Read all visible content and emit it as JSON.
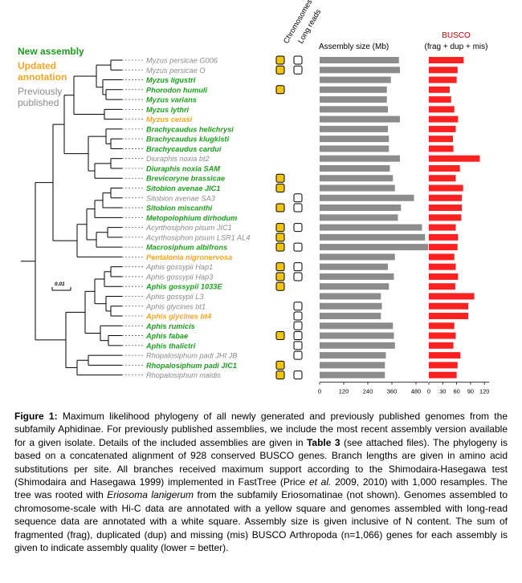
{
  "legend": {
    "new": "New assembly",
    "updated_line1": "Updated",
    "updated_line2": "annotation",
    "previous_line1": "Previously",
    "previous_line2": "published"
  },
  "colors": {
    "new": "#1f9e1f",
    "updated": "#f5a623",
    "previous": "#8c8c8c",
    "assembly_bar": "#8c8c8c",
    "busco_bar": "#ff2020",
    "chromosome_square": "#f1c40f"
  },
  "scale_bar_label": "0.01",
  "column_headers": {
    "chromosomes": "Chromosomes",
    "long_reads": "Long reads",
    "assembly": "Assembly size (Mb)",
    "busco_title": "BUSCO",
    "busco_sub": "(frag + dup + mis)"
  },
  "chart_data": [
    {
      "type": "bar",
      "title": "Assembly size (Mb)",
      "xlim": [
        0,
        540
      ],
      "ticks": [
        "0",
        "120",
        "240",
        "360",
        "480"
      ],
      "categories": [
        "Myzus persicae G006",
        "Myzus persicae O",
        "Myzus ligustri",
        "Phorodon humuli",
        "Myzus varians",
        "Myzus lythri",
        "Myzus cerasi",
        "Brachycaudus helichrysi",
        "Brachycaudus klugkisti",
        "Brachycaudus cardui",
        "Diuraphis noxia bt2",
        "Diuraphis noxia SAM",
        "Brevicoryne brassicae",
        "Sitobion avenae JIC1",
        "Sitobion avenae SA3",
        "Sitobion miscanthi",
        "Metopolophium dirhodum",
        "Acyrthosiphon pisum JIC1",
        "Acyrthosiphon pisum LSR1 AL4",
        "Macrosiphum albifrons",
        "Pentalonia nigronervosa",
        "Aphis gossypii Hap1",
        "Aphis gossypii Hap3",
        "Aphis gossypii 1033E",
        "Aphis gossypii L3",
        "Aphis glycines bt1",
        "Aphis glycines bt4",
        "Aphis rumicis",
        "Aphis fabae",
        "Aphis thalictri",
        "Rhopalosiphum padi JHI JB",
        "Rhopalosiphum padi JIC1",
        "Rhopalosiphum maidis"
      ],
      "values": [
        395,
        400,
        355,
        335,
        335,
        340,
        400,
        340,
        345,
        345,
        400,
        350,
        365,
        375,
        470,
        405,
        390,
        510,
        525,
        540,
        375,
        340,
        370,
        345,
        305,
        310,
        305,
        365,
        370,
        375,
        330,
        325,
        325
      ]
    },
    {
      "type": "bar",
      "title": "BUSCO (frag + dup + mis)",
      "xlim": [
        0,
        130
      ],
      "ticks": [
        "0",
        "30",
        "60",
        "90",
        "120"
      ],
      "categories": [
        "Myzus persicae G006",
        "Myzus persicae O",
        "Myzus ligustri",
        "Phorodon humuli",
        "Myzus varians",
        "Myzus lythri",
        "Myzus cerasi",
        "Brachycaudus helichrysi",
        "Brachycaudus klugkisti",
        "Brachycaudus cardui",
        "Diuraphis noxia bt2",
        "Diuraphis noxia SAM",
        "Brevicoryne brassicae",
        "Sitobion avenae JIC1",
        "Sitobion avenae SA3",
        "Sitobion miscanthi",
        "Metopolophium dirhodum",
        "Acyrthosiphon pisum JIC1",
        "Acyrthosiphon pisum LSR1 AL4",
        "Macrosiphum albifrons",
        "Pentalonia nigronervosa",
        "Aphis gossypii Hap1",
        "Aphis gossypii Hap3",
        "Aphis gossypii 1033E",
        "Aphis gossypii L3",
        "Aphis glycines bt1",
        "Aphis glycines bt4",
        "Aphis rumicis",
        "Aphis fabae",
        "Aphis thalictri",
        "Rhopalosiphum padi JHI JB",
        "Rhopalosiphum padi JIC1",
        "Rhopalosiphum maidis"
      ],
      "values": [
        75,
        62,
        60,
        45,
        48,
        55,
        63,
        58,
        52,
        53,
        110,
        67,
        58,
        74,
        71,
        71,
        70,
        58,
        63,
        62,
        55,
        58,
        63,
        57,
        98,
        85,
        85,
        55,
        58,
        53,
        68,
        62,
        60
      ]
    }
  ],
  "taxa": [
    {
      "name": "Myzus persicae G006",
      "status": "previous",
      "chrom": true,
      "long": true
    },
    {
      "name": "Myzus persicae O",
      "status": "previous",
      "chrom": true,
      "long": true
    },
    {
      "name": "Myzus ligustri",
      "status": "new",
      "chrom": false,
      "long": false
    },
    {
      "name": "Phorodon humuli",
      "status": "new",
      "chrom": true,
      "long": false
    },
    {
      "name": "Myzus varians",
      "status": "new",
      "chrom": false,
      "long": false
    },
    {
      "name": "Myzus lythri",
      "status": "new",
      "chrom": false,
      "long": false
    },
    {
      "name": "Myzus cerasi",
      "status": "updated",
      "chrom": false,
      "long": false
    },
    {
      "name": "Brachycaudus helichrysi",
      "status": "new",
      "chrom": false,
      "long": false
    },
    {
      "name": "Brachycaudus klugkisti",
      "status": "new",
      "chrom": false,
      "long": false
    },
    {
      "name": "Brachycaudus cardui",
      "status": "new",
      "chrom": false,
      "long": false
    },
    {
      "name": "Diuraphis noxia bt2",
      "status": "previous",
      "chrom": false,
      "long": false
    },
    {
      "name": "Diuraphis noxia SAM",
      "status": "new",
      "chrom": false,
      "long": false
    },
    {
      "name": "Brevicoryne brassicae",
      "status": "new",
      "chrom": true,
      "long": false
    },
    {
      "name": "Sitobion avenae JIC1",
      "status": "new",
      "chrom": true,
      "long": false
    },
    {
      "name": "Sitobion avenae SA3",
      "status": "previous",
      "chrom": false,
      "long": true
    },
    {
      "name": "Sitobion miscanthi",
      "status": "new",
      "chrom": true,
      "long": true
    },
    {
      "name": "Metopolophium dirhodum",
      "status": "new",
      "chrom": false,
      "long": false
    },
    {
      "name": "Acyrthosiphon pisum JIC1",
      "status": "previous",
      "chrom": true,
      "long": true
    },
    {
      "name": "Acyrthosiphon pisum LSR1 AL4",
      "status": "previous",
      "chrom": true,
      "long": false
    },
    {
      "name": "Macrosiphum albifrons",
      "status": "new",
      "chrom": true,
      "long": true
    },
    {
      "name": "Pentalonia nigronervosa",
      "status": "updated",
      "chrom": false,
      "long": false
    },
    {
      "name": "Aphis gossypii Hap1",
      "status": "previous",
      "chrom": true,
      "long": true
    },
    {
      "name": "Aphis gossypii Hap3",
      "status": "previous",
      "chrom": true,
      "long": true
    },
    {
      "name": "Aphis gossypii 1033E",
      "status": "new",
      "chrom": true,
      "long": false
    },
    {
      "name": "Aphis gossypii L3",
      "status": "previous",
      "chrom": false,
      "long": false
    },
    {
      "name": "Aphis glycines bt1",
      "status": "previous",
      "chrom": false,
      "long": true
    },
    {
      "name": "Aphis glycines bt4",
      "status": "updated",
      "chrom": false,
      "long": true
    },
    {
      "name": "Aphis rumicis",
      "status": "new",
      "chrom": false,
      "long": true
    },
    {
      "name": "Aphis fabae",
      "status": "new",
      "chrom": true,
      "long": true
    },
    {
      "name": "Aphis thalictri",
      "status": "new",
      "chrom": false,
      "long": true
    },
    {
      "name": "Rhopalosiphum padi JHI JB",
      "status": "previous",
      "chrom": false,
      "long": true
    },
    {
      "name": "Rhopalosiphum padi JIC1",
      "status": "new",
      "chrom": true,
      "long": false
    },
    {
      "name": "Rhopalosiphum maidis",
      "status": "previous",
      "chrom": true,
      "long": true
    }
  ],
  "caption": {
    "label": "Figure 1:",
    "p1": "Maximum likelihood phylogeny of all newly generated and previously published genomes from the subfamily Aphidinae. For previously published assemblies, we include the most recent assembly version available for a given isolate. Details of the included assemblies are given in",
    "table_ref": "Table 3",
    "p2": "(see attached files). The phylogeny is based on a concatenated alignment of 928 conserved BUSCO genes. Branch lengths are given in amino acid substitutions per site. All branches received maximum support according to the Shimodaira-Hasegawa test (Shimodaira and Hasegawa 1999) implemented in FastTree (Price",
    "etal": "et al.",
    "p3": "2009, 2010) with 1,000 resamples. The tree was rooted with",
    "rootsp": "Eriosoma lanigerum",
    "p4": "from the subfamily Eriosomatinae (not shown). Genomes assembled to chromosome-scale with Hi-C data are annotated with a yellow square and genomes assembled with long-read sequence data are annotated with a white square. Assembly size is given inclusive of N content. The sum of fragmented (frag), duplicated (dup) and missing (mis) BUSCO Arthropoda (n=1,066) genes for each assembly is given to indicate assembly quality (lower = better)."
  }
}
